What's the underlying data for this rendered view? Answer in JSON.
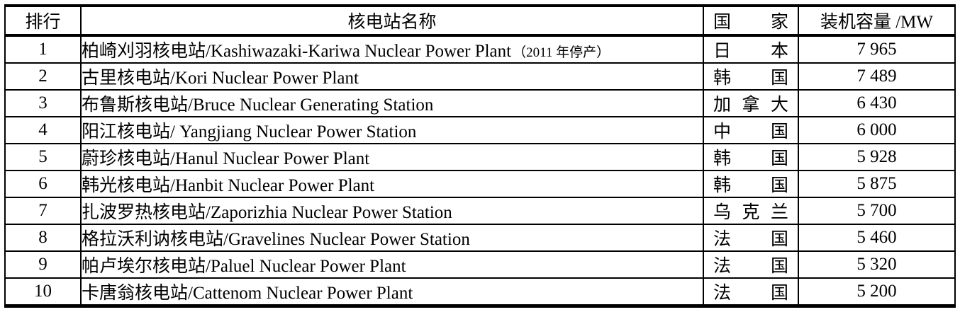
{
  "table": {
    "header": {
      "rank": "排行",
      "name": "核电站名称",
      "country": "国家",
      "capacity": "装机容量 /MW"
    },
    "rows": [
      {
        "rank": "1",
        "name": "柏崎刈羽核电站/Kashiwazaki-Kariwa Nuclear Power Plant",
        "note": "（2011 年停产）",
        "country": "日本",
        "capacity": "7 965"
      },
      {
        "rank": "2",
        "name": "古里核电站/Kori Nuclear Power Plant",
        "note": "",
        "country": "韩国",
        "capacity": "7 489"
      },
      {
        "rank": "3",
        "name": "布鲁斯核电站/Bruce Nuclear Generating Station",
        "note": "",
        "country": "加拿大",
        "capacity": "6 430"
      },
      {
        "rank": "4",
        "name": "阳江核电站/ Yangjiang Nuclear Power Station",
        "note": "",
        "country": "中国",
        "capacity": "6 000"
      },
      {
        "rank": "5",
        "name": "蔚珍核电站/Hanul Nuclear Power Plant",
        "note": "",
        "country": "韩国",
        "capacity": "5 928"
      },
      {
        "rank": "6",
        "name": "韩光核电站/Hanbit Nuclear Power Plant",
        "note": "",
        "country": "韩国",
        "capacity": "5 875"
      },
      {
        "rank": "7",
        "name": "扎波罗热核电站/Zaporizhia Nuclear Power Station",
        "note": "",
        "country": "乌克兰",
        "capacity": "5 700"
      },
      {
        "rank": "8",
        "name": "格拉沃利讷核电站/Gravelines Nuclear Power Station",
        "note": "",
        "country": "法国",
        "capacity": "5 460"
      },
      {
        "rank": "9",
        "name": "帕卢埃尔核电站/Paluel Nuclear Power Plant",
        "note": "",
        "country": "法国",
        "capacity": "5 320"
      },
      {
        "rank": "10",
        "name": "卡唐翁核电站/Cattenom Nuclear Power Plant",
        "note": "",
        "country": "法国",
        "capacity": "5 200"
      }
    ]
  }
}
